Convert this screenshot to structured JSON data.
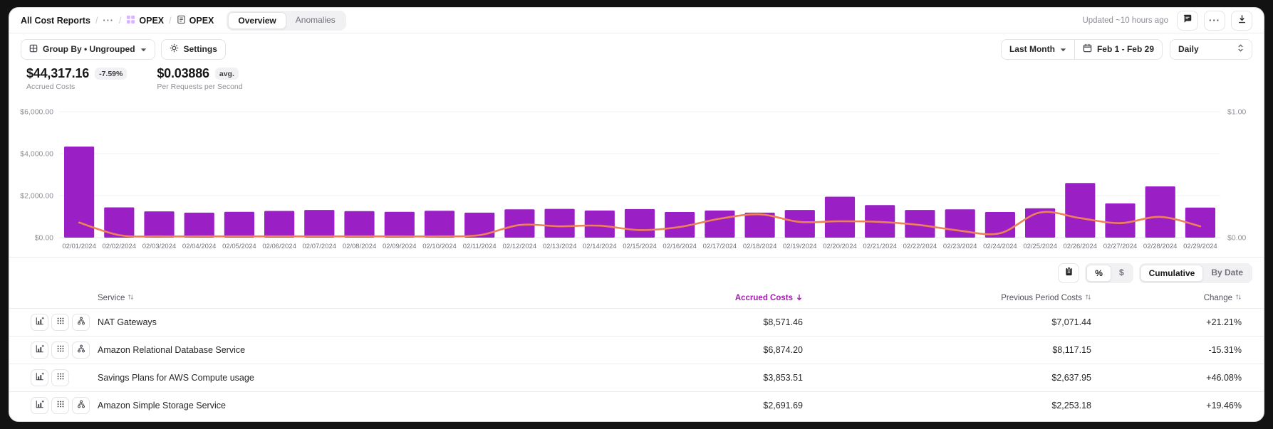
{
  "header": {
    "breadcrumb": {
      "root": "All Cost Reports",
      "separator": "/",
      "ellipsis": "···",
      "parent": "OPEX",
      "current": "OPEX"
    },
    "tabs": [
      {
        "label": "Overview",
        "active": true
      },
      {
        "label": "Anomalies",
        "active": false
      }
    ],
    "updated": "Updated ~10 hours ago"
  },
  "toolbar": {
    "group_by": "Group By • Ungrouped",
    "settings": "Settings",
    "period": "Last Month",
    "date_range": "Feb 1 - Feb 29",
    "granularity": "Daily"
  },
  "metrics": [
    {
      "value": "$44,317.16",
      "badge": "-7.59%",
      "label": "Accrued Costs"
    },
    {
      "value": "$0.03886",
      "badge": "avg.",
      "label": "Per Requests per Second"
    }
  ],
  "chart_data": {
    "type": "bar",
    "title": "Daily accrued costs with per-request cost line",
    "categories": [
      "02/01/2024",
      "02/02/2024",
      "02/03/2024",
      "02/04/2024",
      "02/05/2024",
      "02/06/2024",
      "02/07/2024",
      "02/08/2024",
      "02/09/2024",
      "02/10/2024",
      "02/11/2024",
      "02/12/2024",
      "02/13/2024",
      "02/14/2024",
      "02/15/2024",
      "02/16/2024",
      "02/17/2024",
      "02/18/2024",
      "02/19/2024",
      "02/20/2024",
      "02/21/2024",
      "02/22/2024",
      "02/23/2024",
      "02/24/2024",
      "02/25/2024",
      "02/26/2024",
      "02/27/2024",
      "02/28/2024",
      "02/29/2024"
    ],
    "series": [
      {
        "name": "Accrued Costs",
        "type": "bar",
        "axis": "left",
        "values": [
          4340,
          1440,
          1250,
          1190,
          1230,
          1270,
          1320,
          1260,
          1230,
          1280,
          1190,
          1350,
          1370,
          1290,
          1360,
          1220,
          1290,
          1190,
          1320,
          1950,
          1550,
          1320,
          1350,
          1220,
          1400,
          2600,
          1630,
          2440,
          1430
        ]
      },
      {
        "name": "Per Requests per Second",
        "type": "line",
        "axis": "right",
        "values": [
          0.12,
          0.02,
          0.01,
          0.01,
          0.01,
          0.01,
          0.01,
          0.01,
          0.01,
          0.01,
          0.02,
          0.1,
          0.09,
          0.095,
          0.06,
          0.085,
          0.15,
          0.185,
          0.125,
          0.13,
          0.125,
          0.1,
          0.055,
          0.035,
          0.2,
          0.155,
          0.115,
          0.165,
          0.09
        ]
      }
    ],
    "left_axis": {
      "ticks": [
        "$0.00",
        "$2,000.00",
        "$4,000.00",
        "$6,000.00"
      ],
      "range": [
        0,
        6000
      ]
    },
    "right_axis": {
      "ticks": [
        "$0.00",
        "$1.00"
      ],
      "range": [
        0,
        1
      ]
    },
    "grid": true,
    "legend": false
  },
  "controls": {
    "percent": "%",
    "dollar": "$",
    "cumulative": "Cumulative",
    "by_date": "By Date"
  },
  "table": {
    "columns": [
      "Service",
      "Accrued Costs",
      "Previous Period Costs",
      "Change"
    ],
    "sorted_column": "Accrued Costs",
    "rows": [
      {
        "service": "NAT Gateways",
        "accrued": "$8,571.46",
        "previous": "$7,071.44",
        "change": "+21.21%",
        "icons": [
          "chart-add",
          "grid",
          "hierarchy"
        ]
      },
      {
        "service": "Amazon Relational Database Service",
        "accrued": "$6,874.20",
        "previous": "$8,117.15",
        "change": "-15.31%",
        "icons": [
          "chart-add",
          "grid",
          "hierarchy"
        ]
      },
      {
        "service": "Savings Plans for AWS Compute usage",
        "accrued": "$3,853.51",
        "previous": "$2,637.95",
        "change": "+46.08%",
        "icons": [
          "chart-add",
          "grid"
        ]
      },
      {
        "service": "Amazon Simple Storage Service",
        "accrued": "$2,691.69",
        "previous": "$2,253.18",
        "change": "+19.46%",
        "icons": [
          "chart-add",
          "grid",
          "hierarchy"
        ]
      }
    ]
  },
  "colors": {
    "bar": "#9a20c5",
    "line": "#f08157",
    "sorted_header": "#a21caf",
    "grid_line": "#f0f0f2",
    "baseline": "#e4e4e7",
    "axis_text": "#8e8e96"
  }
}
